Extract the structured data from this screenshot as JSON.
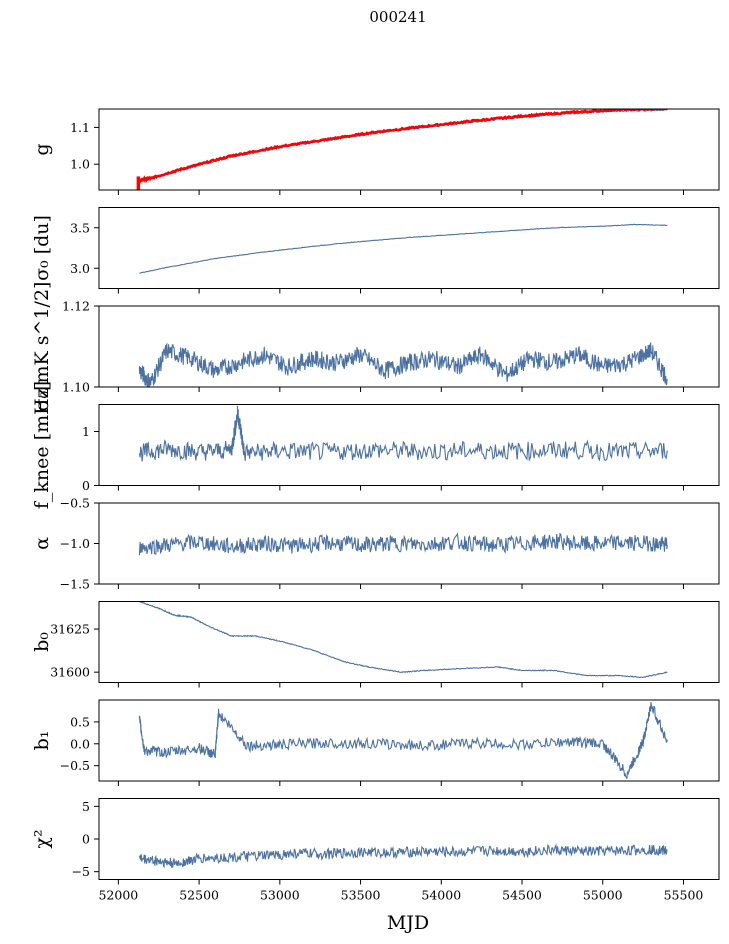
{
  "title": "000241",
  "xlabel": "MJD",
  "colors": {
    "series": "#4c72a4",
    "highlight": "#ff0000",
    "frame": "#000000"
  },
  "chart_data": [
    {
      "type": "line",
      "ylabel": "g",
      "xlim": [
        51880,
        55720
      ],
      "ylim": [
        0.93,
        1.15
      ],
      "yticks": [
        1.0,
        1.1
      ],
      "ytick_labels": [
        "1.0",
        "1.1"
      ],
      "series": [
        {
          "color": "#4c72a4",
          "x": [
            52130,
            52200,
            52400,
            52700,
            53000,
            53300,
            53600,
            53900,
            54200,
            54500,
            54800,
            55100,
            55400
          ],
          "y": [
            0.955,
            0.96,
            0.985,
            1.02,
            1.045,
            1.065,
            1.085,
            1.1,
            1.115,
            1.128,
            1.138,
            1.145,
            1.148
          ]
        },
        {
          "color": "#ff0000",
          "x": [
            52130,
            52200,
            52400,
            52700,
            53000,
            53300,
            53600,
            53900,
            54200,
            54500,
            54800,
            55100,
            55400
          ],
          "y": [
            0.956,
            0.962,
            0.988,
            1.023,
            1.048,
            1.068,
            1.088,
            1.103,
            1.118,
            1.131,
            1.141,
            1.148,
            1.151
          ]
        }
      ]
    },
    {
      "type": "line",
      "ylabel": "σ₀ [du]",
      "xlim": [
        51880,
        55720
      ],
      "ylim": [
        2.75,
        3.75
      ],
      "yticks": [
        3.0,
        3.5
      ],
      "ytick_labels": [
        "3.0",
        "3.5"
      ],
      "series": [
        {
          "color": "#4c72a4",
          "x": [
            52130,
            52300,
            52600,
            52900,
            53200,
            53500,
            53800,
            54100,
            54400,
            54700,
            55000,
            55200,
            55400
          ],
          "y": [
            2.94,
            3.01,
            3.12,
            3.2,
            3.27,
            3.33,
            3.38,
            3.42,
            3.46,
            3.5,
            3.52,
            3.54,
            3.53
          ]
        }
      ]
    },
    {
      "type": "line",
      "ylabel": "σ₀[mK s^1/2]",
      "xlim": [
        51880,
        55720
      ],
      "ylim": [
        1.1,
        1.12
      ],
      "yticks": [
        1.1,
        1.12
      ],
      "ytick_labels": [
        "1.10",
        "1.12"
      ],
      "series": [
        {
          "color": "#4c72a4",
          "x": [
            52130,
            52200,
            52300,
            52450,
            52600,
            52750,
            52900,
            53050,
            53200,
            53350,
            53500,
            53650,
            53800,
            53950,
            54100,
            54250,
            54400,
            54550,
            54700,
            54850,
            55000,
            55150,
            55300,
            55400
          ],
          "y": [
            1.104,
            1.101,
            1.109,
            1.107,
            1.104,
            1.106,
            1.108,
            1.105,
            1.107,
            1.106,
            1.108,
            1.104,
            1.106,
            1.107,
            1.105,
            1.108,
            1.103,
            1.107,
            1.106,
            1.108,
            1.105,
            1.106,
            1.109,
            1.102
          ]
        }
      ]
    },
    {
      "type": "line",
      "ylabel": "f_knee [mHz]",
      "xlim": [
        51880,
        55720
      ],
      "ylim": [
        0,
        1.5
      ],
      "yticks": [
        0,
        1
      ],
      "ytick_labels": [
        "0",
        "1"
      ],
      "series": [
        {
          "color": "#4c72a4",
          "x": [
            52130,
            52300,
            52500,
            52700,
            52740,
            52780,
            53000,
            53300,
            53600,
            53900,
            54200,
            54500,
            54800,
            55100,
            55400
          ],
          "y": [
            0.6,
            0.68,
            0.62,
            0.66,
            1.35,
            0.6,
            0.64,
            0.62,
            0.66,
            0.63,
            0.65,
            0.64,
            0.66,
            0.62,
            0.65
          ]
        }
      ]
    },
    {
      "type": "line",
      "ylabel": "α",
      "xlim": [
        51880,
        55720
      ],
      "ylim": [
        -1.5,
        -0.5
      ],
      "yticks": [
        -1.5,
        -1.0,
        -0.5
      ],
      "ytick_labels": [
        "−1.5",
        "−1.0",
        "−0.5"
      ],
      "series": [
        {
          "color": "#4c72a4",
          "x": [
            52130,
            52300,
            52500,
            52700,
            52900,
            53100,
            53300,
            53500,
            53700,
            53900,
            54100,
            54300,
            54500,
            54700,
            54900,
            55100,
            55300,
            55400
          ],
          "y": [
            -1.05,
            -1.02,
            -0.98,
            -1.04,
            -1.0,
            -1.03,
            -0.99,
            -1.02,
            -1.0,
            -1.01,
            -0.98,
            -1.02,
            -1.0,
            -0.97,
            -1.01,
            -0.99,
            -1.0,
            -1.02
          ]
        }
      ]
    },
    {
      "type": "line",
      "ylabel": "b₀",
      "xlim": [
        51880,
        55720
      ],
      "ylim": [
        31594,
        31641
      ],
      "yticks": [
        31600,
        31625
      ],
      "ytick_labels": [
        "31600",
        "31625"
      ],
      "series": [
        {
          "color": "#4c72a4",
          "x": [
            52130,
            52250,
            52350,
            52450,
            52550,
            52700,
            52850,
            53000,
            53200,
            53400,
            53550,
            53750,
            53900,
            54100,
            54350,
            54500,
            54700,
            54900,
            55100,
            55250,
            55400
          ],
          "y": [
            31641,
            31637,
            31633,
            31632,
            31627,
            31621,
            31621,
            31618,
            31613,
            31606,
            31603,
            31600,
            31601,
            31602,
            31603,
            31601,
            31601,
            31598,
            31598,
            31597,
            31600
          ]
        }
      ]
    },
    {
      "type": "line",
      "ylabel": "b₁",
      "xlim": [
        51880,
        55720
      ],
      "ylim": [
        -0.85,
        1.0
      ],
      "yticks": [
        -0.5,
        0.0,
        0.5
      ],
      "ytick_labels": [
        "−0.5",
        "0.0",
        "0.5"
      ],
      "series": [
        {
          "color": "#4c72a4",
          "x": [
            52130,
            52160,
            52300,
            52500,
            52600,
            52620,
            52800,
            53000,
            53300,
            53600,
            53900,
            54200,
            54500,
            54800,
            55000,
            55150,
            55250,
            55300,
            55400
          ],
          "y": [
            0.58,
            -0.15,
            -0.2,
            -0.1,
            -0.25,
            0.7,
            -0.05,
            -0.02,
            0.02,
            0.0,
            -0.04,
            0.02,
            -0.02,
            0.05,
            0.0,
            -0.7,
            0.05,
            0.9,
            0.05
          ]
        }
      ]
    },
    {
      "type": "line",
      "ylabel": "χ²",
      "xlim": [
        51880,
        55720
      ],
      "ylim": [
        -6.2,
        6.2
      ],
      "yticks": [
        -5,
        0,
        5
      ],
      "ytick_labels": [
        "−5",
        "0",
        "5"
      ],
      "xticks": [
        52000,
        52500,
        53000,
        53500,
        54000,
        54500,
        55000,
        55500
      ],
      "xtick_labels": [
        "52000",
        "52500",
        "53000",
        "53500",
        "54000",
        "54500",
        "55000",
        "55500"
      ],
      "series": [
        {
          "color": "#4c72a4",
          "x": [
            52130,
            52250,
            52350,
            52500,
            52700,
            52900,
            53100,
            53300,
            53500,
            53700,
            53900,
            54100,
            54300,
            54500,
            54700,
            54900,
            55100,
            55300,
            55400
          ],
          "y": [
            -3.0,
            -3.4,
            -3.8,
            -3.0,
            -2.8,
            -2.6,
            -2.2,
            -2.3,
            -2.0,
            -2.1,
            -1.9,
            -2.0,
            -1.8,
            -1.9,
            -1.7,
            -1.9,
            -1.8,
            -1.6,
            -1.8
          ]
        }
      ]
    }
  ]
}
